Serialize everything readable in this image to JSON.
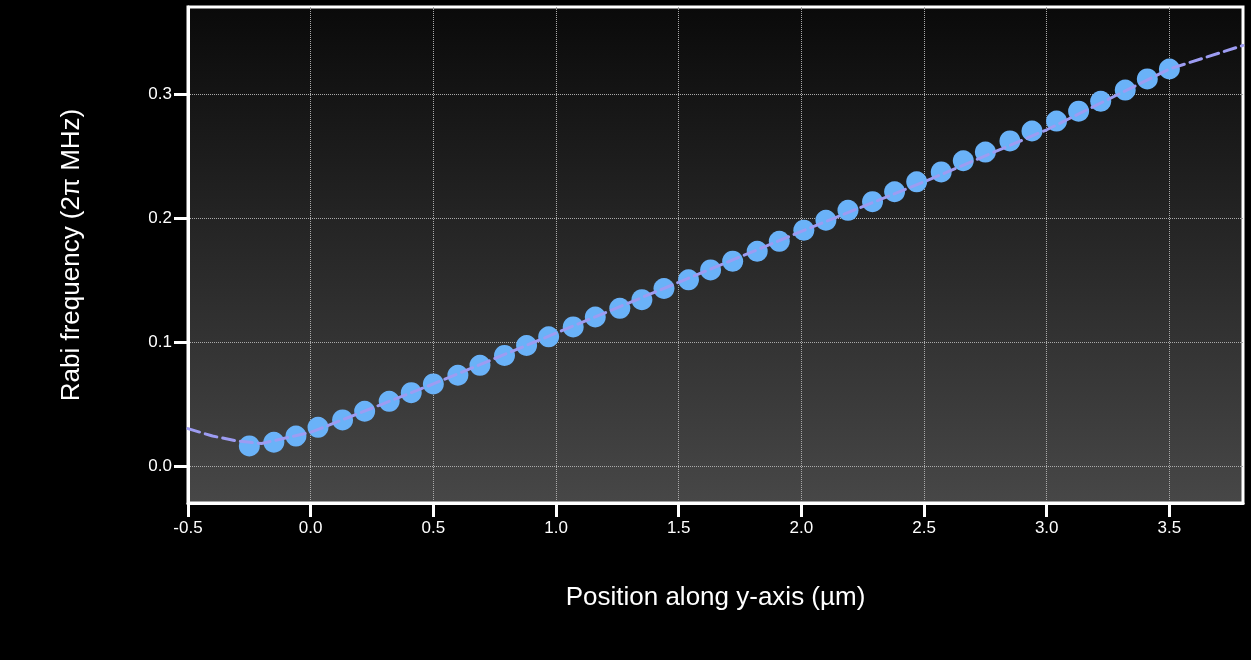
{
  "chart_data": {
    "type": "scatter",
    "xlabel": "Position along y-axis (µm)",
    "ylabel": "Rabi frequency (2π MHz)",
    "xlim": [
      -0.5,
      3.8
    ],
    "xticks": [
      -0.5,
      {
        "value": 0,
        "label": "0.0"
      },
      0.5,
      {
        "value": 1,
        "label": "1.0"
      },
      1.5,
      {
        "value": 2,
        "label": "2.0"
      },
      2.5,
      {
        "value": 3,
        "label": "3.0"
      },
      3.5
    ],
    "ylim": [
      -0.03,
      0.37
    ],
    "yticks": [
      {
        "value": 0,
        "label": "0.0"
      },
      0.1,
      0.2,
      0.3
    ],
    "grid": true,
    "series": [
      {
        "type": "line",
        "color": "#9d9cf2",
        "line_style": "dashed",
        "marker": "none",
        "x": [
          -0.5,
          -0.4,
          -0.3,
          -0.2,
          0,
          0.5,
          1,
          1.5,
          2,
          2.5,
          3,
          3.5,
          3.8
        ],
        "values": [
          0.03,
          0.024,
          0.02,
          0.018,
          0.027,
          0.066,
          0.107,
          0.148,
          0.189,
          0.229,
          0.271,
          0.32,
          0.339
        ]
      },
      {
        "color": "#6ab2f8",
        "marker": "circle",
        "x": [
          -0.25,
          -0.15,
          -0.06,
          0.03,
          0.13,
          0.22,
          0.32,
          0.41,
          0.5,
          0.6,
          0.69,
          0.79,
          0.88,
          0.97,
          1.07,
          1.16,
          1.26,
          1.35,
          1.44,
          1.54,
          1.63,
          1.72,
          1.82,
          1.91,
          2.01,
          2.1,
          2.19,
          2.29,
          2.38,
          2.47,
          2.57,
          2.66,
          2.75,
          2.85,
          2.94,
          3.04,
          3.13,
          3.22,
          3.32,
          3.41,
          3.5
        ],
        "values": [
          0.016,
          0.019,
          0.024,
          0.031,
          0.037,
          0.044,
          0.052,
          0.059,
          0.066,
          0.073,
          0.081,
          0.089,
          0.097,
          0.104,
          0.112,
          0.12,
          0.127,
          0.134,
          0.143,
          0.15,
          0.158,
          0.165,
          0.173,
          0.181,
          0.19,
          0.198,
          0.206,
          0.213,
          0.221,
          0.229,
          0.237,
          0.246,
          0.253,
          0.262,
          0.27,
          0.278,
          0.286,
          0.294,
          0.303,
          0.312,
          0.32
        ]
      }
    ]
  }
}
